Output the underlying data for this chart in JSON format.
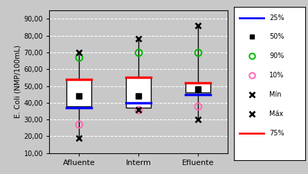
{
  "categories": [
    "Afluente",
    "Interm",
    "Efluente"
  ],
  "ylabel": "E. Coli (NMP/100mL)",
  "ylim": [
    10,
    95
  ],
  "yticks": [
    10,
    20,
    30,
    40,
    50,
    60,
    70,
    80,
    90
  ],
  "ytick_labels": [
    "10,00",
    "20,00",
    "30,00",
    "40,00",
    "50,00",
    "60,00",
    "70,00",
    "80,00",
    "90,00"
  ],
  "bg_color": "#c8c8c8",
  "plot_bg_color": "#c8c8c8",
  "boxes": [
    {
      "q25": 38,
      "q75": 54,
      "median50": 44,
      "p25_line": 37,
      "p75_line": 54,
      "p90": 67,
      "p10": 27,
      "min_val": 19,
      "max_val": 70
    },
    {
      "q25": 37,
      "q75": 55,
      "median50": 44,
      "p25_line": 40,
      "p75_line": 55,
      "p90": 70,
      "p10": 36,
      "min_val": 36,
      "max_val": 78
    },
    {
      "q25": 46,
      "q75": 52,
      "median50": 48,
      "p25_line": 45,
      "p75_line": 52,
      "p90": 70,
      "p10": 38,
      "min_val": 30,
      "max_val": 86
    }
  ],
  "box_fill": "#ffffff",
  "box_edge": "#000000",
  "line25_color": "#0000ff",
  "line75_color": "#ff0000",
  "median50_color": "#000000",
  "p90_color": "#00bb00",
  "p10_color": "#ff69b4",
  "min_color": "#000000",
  "max_color": "#000000"
}
